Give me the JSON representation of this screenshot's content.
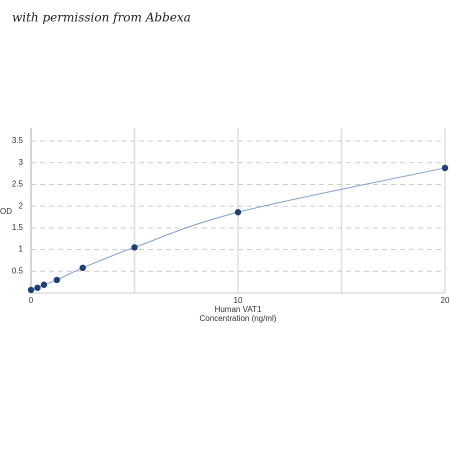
{
  "watermark": "with permission from Abbexa",
  "chart_data": {
    "type": "line",
    "x_label_lines": [
      "Human VAT1",
      "Concentration (ng/ml)"
    ],
    "y_label": "OD",
    "x": [
      0,
      0.3125,
      0.625,
      1.25,
      2.5,
      5,
      10,
      20
    ],
    "series": [
      {
        "color": "#1f3f7a",
        "line_color": "#7f9fcc",
        "values": [
          0.07,
          0.12,
          0.19,
          0.3,
          0.58,
          1.05,
          1.86,
          2.88
        ]
      }
    ],
    "xlim": [
      0,
      20
    ],
    "xticks": [
      0,
      10,
      20
    ],
    "xgrid": [
      0,
      5,
      10,
      15,
      20
    ],
    "ylim": [
      0,
      3.8
    ],
    "yticks": [
      0.5,
      1,
      1.5,
      2,
      2.5,
      3,
      3.5
    ],
    "grid": true
  }
}
